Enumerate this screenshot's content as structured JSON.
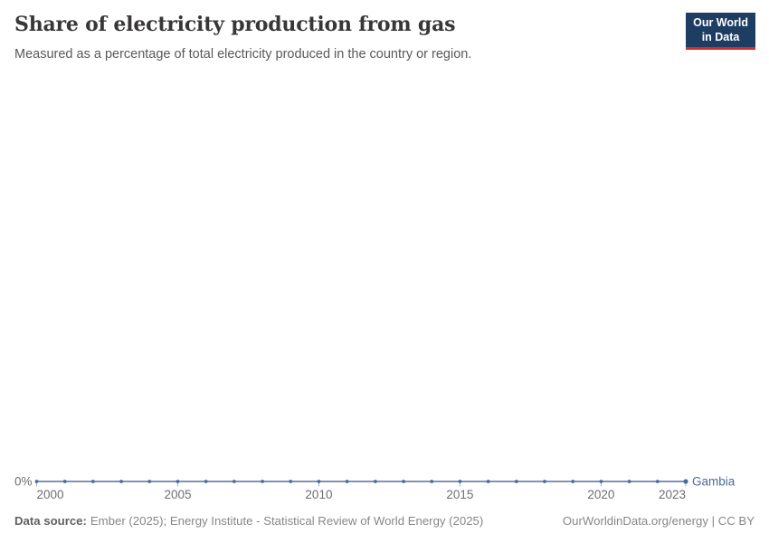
{
  "header": {
    "title": "Share of electricity production from gas",
    "subtitle": "Measured as a percentage of total electricity produced in the country or region."
  },
  "logo": {
    "line1": "Our World",
    "line2": "in Data",
    "background_color": "#1d3d63",
    "bar_color": "#d42b2b"
  },
  "chart_data": {
    "type": "line",
    "title": "Share of electricity production from gas",
    "subtitle": "Measured as a percentage of total electricity produced in the country or region.",
    "x": [
      2000,
      2001,
      2002,
      2003,
      2004,
      2005,
      2006,
      2007,
      2008,
      2009,
      2010,
      2011,
      2012,
      2013,
      2014,
      2015,
      2016,
      2017,
      2018,
      2019,
      2020,
      2021,
      2022,
      2023
    ],
    "series": [
      {
        "name": "Gambia",
        "color": "#4c6a9c",
        "values": [
          0,
          0,
          0,
          0,
          0,
          0,
          0,
          0,
          0,
          0,
          0,
          0,
          0,
          0,
          0,
          0,
          0,
          0,
          0,
          0,
          0,
          0,
          0,
          0
        ]
      }
    ],
    "xlabel": "",
    "ylabel": "",
    "y_tick_labels": [
      "0%"
    ],
    "x_tick_labels": [
      "2000",
      "2005",
      "2010",
      "2015",
      "2020",
      "2023"
    ],
    "grid": false,
    "legend": "entity label at end of line",
    "unit": "%"
  },
  "footer": {
    "source_label": "Data source:",
    "source_text": "Ember (2025); Energy Institute - Statistical Review of World Energy (2025)",
    "right_text": "OurWorldinData.org/energy | CC BY"
  }
}
